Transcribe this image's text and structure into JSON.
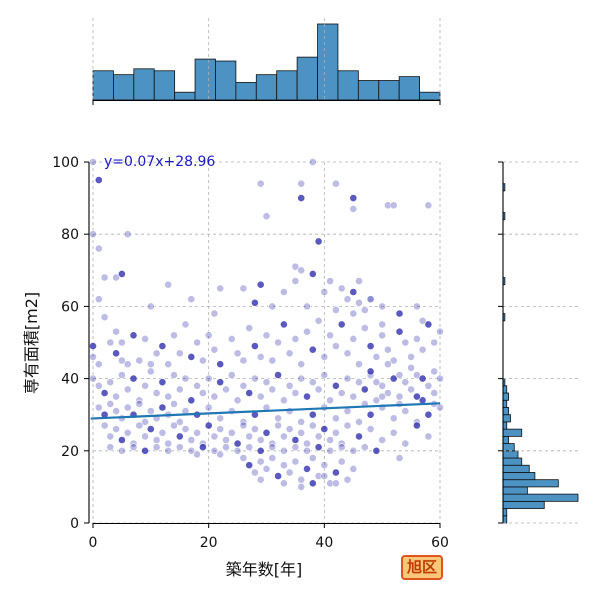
{
  "chart_data": {
    "type": "scatter",
    "title": "",
    "xlabel": "築年数[年]",
    "ylabel": "専有面積[m2]",
    "xlim": [
      0,
      60
    ],
    "ylim": [
      0,
      100
    ],
    "xticks": [
      0,
      20,
      40,
      60
    ],
    "yticks": [
      0,
      20,
      40,
      60,
      80,
      100
    ],
    "grid": true,
    "regression": {
      "label": "y=0.07x+28.96",
      "slope": 0.07,
      "intercept": 28.96
    },
    "colors": {
      "points": "#2222aa",
      "line": "#1f77b4",
      "hist": "#4c92c3",
      "label": "#1a1acc"
    },
    "points": [
      [
        1,
        95
      ],
      [
        29,
        94
      ],
      [
        36,
        94
      ],
      [
        38,
        100
      ],
      [
        0,
        100
      ],
      [
        45,
        90
      ],
      [
        45,
        87
      ],
      [
        51,
        88
      ],
      [
        52,
        88
      ],
      [
        58,
        88
      ],
      [
        36,
        90
      ],
      [
        42,
        94
      ],
      [
        0,
        80
      ],
      [
        6,
        80
      ],
      [
        30,
        85
      ],
      [
        39,
        78
      ],
      [
        1,
        76
      ],
      [
        1,
        62
      ],
      [
        2,
        68
      ],
      [
        4,
        68
      ],
      [
        5,
        69
      ],
      [
        13,
        66
      ],
      [
        17,
        62
      ],
      [
        22,
        65
      ],
      [
        26,
        65
      ],
      [
        29,
        66
      ],
      [
        33,
        64
      ],
      [
        35,
        67
      ],
      [
        35,
        71
      ],
      [
        36,
        70
      ],
      [
        38,
        69
      ],
      [
        40,
        64
      ],
      [
        41,
        67
      ],
      [
        43,
        65
      ],
      [
        44,
        62
      ],
      [
        45,
        64
      ],
      [
        46,
        61
      ],
      [
        46,
        67
      ],
      [
        48,
        62
      ],
      [
        50,
        60
      ],
      [
        53,
        58
      ],
      [
        56,
        60
      ],
      [
        57,
        56
      ],
      [
        10,
        60
      ],
      [
        21,
        58
      ],
      [
        28,
        61
      ],
      [
        31,
        60
      ],
      [
        37,
        60
      ],
      [
        42,
        59
      ],
      [
        47,
        59
      ],
      [
        0,
        49
      ],
      [
        0,
        46
      ],
      [
        1,
        44
      ],
      [
        2,
        57
      ],
      [
        3,
        50
      ],
      [
        4,
        47
      ],
      [
        4,
        53
      ],
      [
        5,
        45
      ],
      [
        5,
        50
      ],
      [
        6,
        44
      ],
      [
        7,
        52
      ],
      [
        8,
        45
      ],
      [
        9,
        51
      ],
      [
        10,
        44
      ],
      [
        11,
        47
      ],
      [
        12,
        49
      ],
      [
        13,
        44
      ],
      [
        14,
        52
      ],
      [
        15,
        47
      ],
      [
        16,
        55
      ],
      [
        17,
        46
      ],
      [
        18,
        50
      ],
      [
        19,
        45
      ],
      [
        20,
        52
      ],
      [
        21,
        48
      ],
      [
        22,
        44
      ],
      [
        24,
        51
      ],
      [
        25,
        47
      ],
      [
        26,
        45
      ],
      [
        27,
        54
      ],
      [
        28,
        49
      ],
      [
        29,
        46
      ],
      [
        30,
        52
      ],
      [
        31,
        45
      ],
      [
        32,
        50
      ],
      [
        33,
        55
      ],
      [
        34,
        47
      ],
      [
        35,
        51
      ],
      [
        36,
        44
      ],
      [
        37,
        53
      ],
      [
        38,
        48
      ],
      [
        39,
        56
      ],
      [
        40,
        46
      ],
      [
        41,
        52
      ],
      [
        42,
        49
      ],
      [
        43,
        55
      ],
      [
        44,
        47
      ],
      [
        45,
        51
      ],
      [
        46,
        44
      ],
      [
        47,
        54
      ],
      [
        48,
        49
      ],
      [
        49,
        46
      ],
      [
        50,
        52
      ],
      [
        51,
        48
      ],
      [
        52,
        45
      ],
      [
        53,
        53
      ],
      [
        54,
        50
      ],
      [
        55,
        46
      ],
      [
        56,
        51
      ],
      [
        57,
        48
      ],
      [
        58,
        55
      ],
      [
        59,
        50
      ],
      [
        60,
        53
      ],
      [
        0,
        40
      ],
      [
        1,
        38
      ],
      [
        2,
        36
      ],
      [
        3,
        39
      ],
      [
        4,
        35
      ],
      [
        5,
        41
      ],
      [
        6,
        37
      ],
      [
        7,
        40
      ],
      [
        8,
        34
      ],
      [
        9,
        38
      ],
      [
        10,
        42
      ],
      [
        11,
        36
      ],
      [
        12,
        39
      ],
      [
        13,
        35
      ],
      [
        14,
        41
      ],
      [
        15,
        37
      ],
      [
        16,
        40
      ],
      [
        17,
        34
      ],
      [
        18,
        38
      ],
      [
        19,
        36
      ],
      [
        20,
        40
      ],
      [
        21,
        35
      ],
      [
        22,
        39
      ],
      [
        23,
        37
      ],
      [
        24,
        41
      ],
      [
        25,
        34
      ],
      [
        26,
        38
      ],
      [
        27,
        36
      ],
      [
        28,
        40
      ],
      [
        29,
        35
      ],
      [
        30,
        39
      ],
      [
        31,
        37
      ],
      [
        32,
        41
      ],
      [
        33,
        34
      ],
      [
        34,
        38
      ],
      [
        35,
        36
      ],
      [
        36,
        40
      ],
      [
        37,
        35
      ],
      [
        38,
        39
      ],
      [
        39,
        37
      ],
      [
        40,
        41
      ],
      [
        41,
        34
      ],
      [
        42,
        38
      ],
      [
        43,
        36
      ],
      [
        44,
        40
      ],
      [
        45,
        35
      ],
      [
        46,
        39
      ],
      [
        47,
        37
      ],
      [
        48,
        41
      ],
      [
        49,
        34
      ],
      [
        50,
        38
      ],
      [
        51,
        36
      ],
      [
        52,
        40
      ],
      [
        53,
        35
      ],
      [
        54,
        39
      ],
      [
        55,
        37
      ],
      [
        56,
        41
      ],
      [
        57,
        34
      ],
      [
        58,
        38
      ],
      [
        59,
        36
      ],
      [
        60,
        40
      ],
      [
        1,
        32
      ],
      [
        2,
        30
      ],
      [
        3,
        33
      ],
      [
        4,
        31
      ],
      [
        5,
        29
      ],
      [
        6,
        32
      ],
      [
        7,
        30
      ],
      [
        8,
        33
      ],
      [
        9,
        28
      ],
      [
        10,
        31
      ],
      [
        11,
        29
      ],
      [
        12,
        32
      ],
      [
        13,
        30
      ],
      [
        14,
        33
      ],
      [
        15,
        28
      ],
      [
        16,
        31
      ],
      [
        18,
        30
      ],
      [
        20,
        32
      ],
      [
        22,
        29
      ],
      [
        24,
        31
      ],
      [
        26,
        28
      ],
      [
        28,
        30
      ],
      [
        30,
        32
      ],
      [
        32,
        29
      ],
      [
        34,
        31
      ],
      [
        36,
        28
      ],
      [
        38,
        30
      ],
      [
        40,
        32
      ],
      [
        42,
        29
      ],
      [
        44,
        31
      ],
      [
        46,
        28
      ],
      [
        48,
        30
      ],
      [
        50,
        32
      ],
      [
        52,
        29
      ],
      [
        54,
        31
      ],
      [
        56,
        28
      ],
      [
        58,
        30
      ],
      [
        60,
        32
      ],
      [
        2,
        27
      ],
      [
        3,
        24
      ],
      [
        4,
        26
      ],
      [
        5,
        23
      ],
      [
        6,
        25
      ],
      [
        7,
        22
      ],
      [
        8,
        27
      ],
      [
        9,
        24
      ],
      [
        10,
        26
      ],
      [
        11,
        23
      ],
      [
        12,
        25
      ],
      [
        13,
        22
      ],
      [
        14,
        27
      ],
      [
        15,
        24
      ],
      [
        16,
        26
      ],
      [
        17,
        23
      ],
      [
        18,
        25
      ],
      [
        19,
        22
      ],
      [
        20,
        27
      ],
      [
        21,
        24
      ],
      [
        22,
        26
      ],
      [
        23,
        23
      ],
      [
        24,
        25
      ],
      [
        25,
        22
      ],
      [
        26,
        27
      ],
      [
        27,
        24
      ],
      [
        28,
        26
      ],
      [
        29,
        23
      ],
      [
        30,
        25
      ],
      [
        31,
        22
      ],
      [
        32,
        27
      ],
      [
        33,
        24
      ],
      [
        34,
        26
      ],
      [
        35,
        23
      ],
      [
        36,
        25
      ],
      [
        37,
        22
      ],
      [
        38,
        27
      ],
      [
        39,
        24
      ],
      [
        40,
        26
      ],
      [
        41,
        23
      ],
      [
        42,
        25
      ],
      [
        43,
        22
      ],
      [
        44,
        27
      ],
      [
        46,
        24
      ],
      [
        48,
        26
      ],
      [
        50,
        23
      ],
      [
        52,
        25
      ],
      [
        54,
        22
      ],
      [
        56,
        27
      ],
      [
        58,
        24
      ],
      [
        3,
        21
      ],
      [
        5,
        20
      ],
      [
        7,
        21
      ],
      [
        9,
        20
      ],
      [
        11,
        21
      ],
      [
        13,
        20
      ],
      [
        15,
        21
      ],
      [
        17,
        20
      ],
      [
        19,
        21
      ],
      [
        21,
        20
      ],
      [
        23,
        21
      ],
      [
        25,
        20
      ],
      [
        27,
        21
      ],
      [
        29,
        20
      ],
      [
        31,
        21
      ],
      [
        33,
        20
      ],
      [
        35,
        21
      ],
      [
        37,
        20
      ],
      [
        39,
        21
      ],
      [
        41,
        20
      ],
      [
        43,
        21
      ],
      [
        45,
        20
      ],
      [
        47,
        21
      ],
      [
        49,
        20
      ],
      [
        53,
        18
      ],
      [
        18,
        19
      ],
      [
        22,
        19
      ],
      [
        26,
        18
      ],
      [
        27,
        16
      ],
      [
        28,
        14
      ],
      [
        29,
        17
      ],
      [
        30,
        15
      ],
      [
        31,
        18
      ],
      [
        32,
        13
      ],
      [
        33,
        16
      ],
      [
        34,
        14
      ],
      [
        35,
        17
      ],
      [
        36,
        12
      ],
      [
        37,
        15
      ],
      [
        38,
        18
      ],
      [
        39,
        13
      ],
      [
        40,
        16
      ],
      [
        41,
        11
      ],
      [
        42,
        14
      ],
      [
        43,
        17
      ],
      [
        44,
        12
      ],
      [
        45,
        15
      ],
      [
        36,
        10
      ],
      [
        38,
        11
      ],
      [
        40,
        13
      ],
      [
        33,
        11
      ],
      [
        29,
        12
      ],
      [
        42,
        11
      ],
      [
        48,
        42
      ],
      [
        49,
        39
      ],
      [
        51,
        44
      ],
      [
        53,
        41
      ],
      [
        55,
        43
      ],
      [
        57,
        40
      ],
      [
        59,
        42
      ],
      [
        47,
        33
      ],
      [
        50,
        35
      ],
      [
        53,
        33
      ],
      [
        56,
        35
      ],
      [
        59,
        33
      ],
      [
        48,
        62
      ],
      [
        45,
        58
      ],
      [
        50,
        55
      ]
    ],
    "x_hist_counts": [
      15,
      13,
      16,
      15,
      4,
      21,
      20,
      9,
      13,
      15,
      22,
      39,
      15,
      10,
      10,
      12,
      4
    ],
    "y_hist_counts": [
      4,
      4,
      44,
      80,
      26,
      59,
      34,
      28,
      20,
      16,
      12,
      6,
      20,
      4,
      8,
      6,
      4,
      6,
      4,
      2,
      0,
      0,
      0,
      0,
      0,
      0,
      0,
      0,
      2,
      0,
      0,
      0,
      0,
      2,
      0,
      0,
      0,
      0,
      0,
      0,
      0,
      0,
      2,
      0,
      0,
      0,
      2,
      0,
      0,
      0
    ],
    "x_hist_bins": [
      0,
      60
    ],
    "y_hist_bins": [
      0,
      100
    ]
  },
  "ward_badge": {
    "label": "旭区"
  }
}
